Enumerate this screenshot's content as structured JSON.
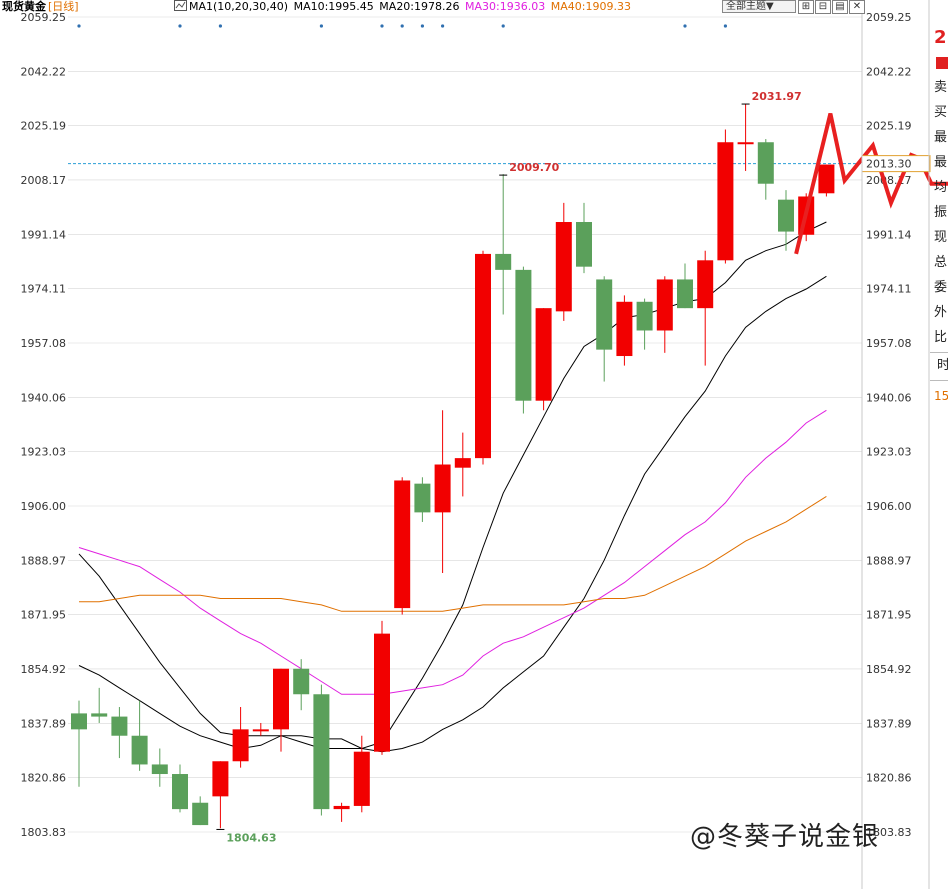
{
  "header": {
    "instrument": "现货黄金",
    "period": "[日线]",
    "ma_set_label": "MA1(10,20,30,40)",
    "ma10_label": "MA10:1995.45",
    "ma20_label": "MA20:1978.26",
    "ma30_label": "MA30:1936.03",
    "ma40_label": "MA40:1909.33",
    "theme_select": "全部主题",
    "theme_arrow": "▼"
  },
  "side_panel": {
    "price_fragment": "2",
    "rows": [
      "卖",
      "买",
      "最",
      "最",
      "均",
      "振",
      "现",
      "总",
      "委",
      "外",
      "比"
    ],
    "time_label": "时",
    "value_fragment": "15"
  },
  "watermark": "@冬葵子说金银",
  "price_tag": "2013.30",
  "colors": {
    "up": "#f20000",
    "down": "#5ba05b",
    "ma10": "#000000",
    "ma20": "#000000",
    "ma30": "#e020e0",
    "ma40": "#e07000",
    "grid": "#d8d8d8",
    "current_line": "#2a9fd6",
    "annotation_arrow": "#e82020"
  },
  "chart_data": {
    "type": "candlestick",
    "ylim": [
      1795,
      2062
    ],
    "y_ticks": [
      "2059.25",
      "2042.22",
      "2025.19",
      "2008.17",
      "1991.14",
      "1974.11",
      "1957.08",
      "1940.06",
      "1923.03",
      "1906.00",
      "1888.97",
      "1871.95",
      "1854.92",
      "1837.89",
      "1820.86",
      "1803.83"
    ],
    "current_price": 2013.3,
    "annotations": [
      {
        "label": "2031.97",
        "candle": 33,
        "value": 2031.97,
        "color": "#d03030"
      },
      {
        "label": "2009.70",
        "candle": 21,
        "value": 2009.7,
        "color": "#d03030"
      },
      {
        "label": "1804.63",
        "candle": 7,
        "value": 1804.63,
        "color": "#5ba05b"
      }
    ],
    "candles": [
      {
        "o": 1841,
        "h": 1845,
        "l": 1818,
        "c": 1836
      },
      {
        "o": 1841,
        "h": 1849,
        "l": 1838,
        "c": 1840
      },
      {
        "o": 1840,
        "h": 1843,
        "l": 1827,
        "c": 1834
      },
      {
        "o": 1834,
        "h": 1845,
        "l": 1823,
        "c": 1825
      },
      {
        "o": 1825,
        "h": 1830,
        "l": 1818,
        "c": 1822
      },
      {
        "o": 1822,
        "h": 1825,
        "l": 1810,
        "c": 1811
      },
      {
        "o": 1813,
        "h": 1815,
        "l": 1806,
        "c": 1806
      },
      {
        "o": 1815,
        "h": 1826,
        "l": 1805,
        "c": 1826
      },
      {
        "o": 1826,
        "h": 1843,
        "l": 1824,
        "c": 1836
      },
      {
        "o": 1836,
        "h": 1838,
        "l": 1834,
        "c": 1836
      },
      {
        "o": 1836,
        "h": 1855,
        "l": 1829,
        "c": 1855
      },
      {
        "o": 1855,
        "h": 1858,
        "l": 1842,
        "c": 1847
      },
      {
        "o": 1847,
        "h": 1850,
        "l": 1809,
        "c": 1811
      },
      {
        "o": 1811,
        "h": 1813,
        "l": 1807,
        "c": 1812
      },
      {
        "o": 1812,
        "h": 1834,
        "l": 1810,
        "c": 1829
      },
      {
        "o": 1829,
        "h": 1870,
        "l": 1828,
        "c": 1866
      },
      {
        "o": 1874,
        "h": 1915,
        "l": 1872,
        "c": 1914
      },
      {
        "o": 1913,
        "h": 1915,
        "l": 1901,
        "c": 1904
      },
      {
        "o": 1904,
        "h": 1936,
        "l": 1885,
        "c": 1919
      },
      {
        "o": 1918,
        "h": 1929,
        "l": 1909,
        "c": 1921
      },
      {
        "o": 1921,
        "h": 1986,
        "l": 1919,
        "c": 1985
      },
      {
        "o": 1985,
        "h": 2010,
        "l": 1966,
        "c": 1980
      },
      {
        "o": 1980,
        "h": 1981,
        "l": 1935,
        "c": 1939
      },
      {
        "o": 1939,
        "h": 1968,
        "l": 1936,
        "c": 1968
      },
      {
        "o": 1967,
        "h": 2001,
        "l": 1964,
        "c": 1995
      },
      {
        "o": 1995,
        "h": 2001,
        "l": 1979,
        "c": 1981
      },
      {
        "o": 1977,
        "h": 1978,
        "l": 1945,
        "c": 1955
      },
      {
        "o": 1953,
        "h": 1972,
        "l": 1950,
        "c": 1970
      },
      {
        "o": 1970,
        "h": 1971,
        "l": 1955,
        "c": 1961
      },
      {
        "o": 1961,
        "h": 1978,
        "l": 1954,
        "c": 1977
      },
      {
        "o": 1977,
        "h": 1982,
        "l": 1968,
        "c": 1968
      },
      {
        "o": 1968,
        "h": 1986,
        "l": 1950,
        "c": 1983
      },
      {
        "o": 1983,
        "h": 2024,
        "l": 1982,
        "c": 2020
      },
      {
        "o": 2020,
        "h": 2032,
        "l": 2011,
        "c": 2020
      },
      {
        "o": 2020,
        "h": 2021,
        "l": 2002,
        "c": 2007
      },
      {
        "o": 2002,
        "h": 2005,
        "l": 1986,
        "c": 1992
      },
      {
        "o": 1991,
        "h": 2004,
        "l": 1989,
        "c": 2003
      },
      {
        "o": 2004,
        "h": 2013,
        "l": 2003,
        "c": 2013
      }
    ],
    "series": [
      {
        "name": "MA10",
        "values": [
          1891,
          1884,
          1875,
          1866,
          1857,
          1849,
          1841,
          1835,
          1834,
          1834,
          1834,
          1832,
          1830,
          1830,
          1830,
          1832,
          1842,
          1852,
          1863,
          1875,
          1893,
          1910,
          1922,
          1934,
          1946,
          1956,
          1960,
          1965,
          1966,
          1968,
          1970,
          1971,
          1976,
          1983,
          1986,
          1988,
          1992,
          1995
        ]
      },
      {
        "name": "MA20",
        "values": [
          1856,
          1853,
          1849,
          1845,
          1841,
          1837,
          1834,
          1832,
          1830,
          1831,
          1834,
          1834,
          1833,
          1833,
          1830,
          1829,
          1830,
          1832,
          1836,
          1839,
          1843,
          1849,
          1854,
          1859,
          1868,
          1877,
          1889,
          1903,
          1916,
          1925,
          1934,
          1942,
          1953,
          1962,
          1967,
          1971,
          1974,
          1978
        ]
      },
      {
        "name": "MA30",
        "values": [
          1893,
          1891,
          1889,
          1887,
          1883,
          1879,
          1874,
          1870,
          1866,
          1863,
          1859,
          1855,
          1851,
          1847,
          1847,
          1847,
          1848,
          1849,
          1850,
          1853,
          1859,
          1863,
          1865,
          1868,
          1871,
          1874,
          1878,
          1882,
          1887,
          1892,
          1897,
          1901,
          1907,
          1915,
          1921,
          1926,
          1932,
          1936
        ]
      },
      {
        "name": "MA40",
        "values": [
          1876,
          1876,
          1877,
          1878,
          1878,
          1878,
          1878,
          1877,
          1877,
          1877,
          1877,
          1876,
          1875,
          1873,
          1873,
          1873,
          1873,
          1873,
          1873,
          1874,
          1875,
          1875,
          1875,
          1875,
          1875,
          1876,
          1877,
          1877,
          1878,
          1881,
          1884,
          1887,
          1891,
          1895,
          1898,
          1901,
          1905,
          1909
        ]
      }
    ],
    "projection_path": [
      [
        35.5,
        1985
      ],
      [
        37.2,
        2029
      ],
      [
        37.9,
        2008
      ],
      [
        39.3,
        2019
      ],
      [
        40.2,
        2001
      ],
      [
        41.2,
        2016
      ],
      [
        41.6,
        2015
      ],
      [
        42.2,
        2007
      ],
      [
        43.2,
        2007
      ],
      [
        44.2,
        1995
      ]
    ]
  }
}
